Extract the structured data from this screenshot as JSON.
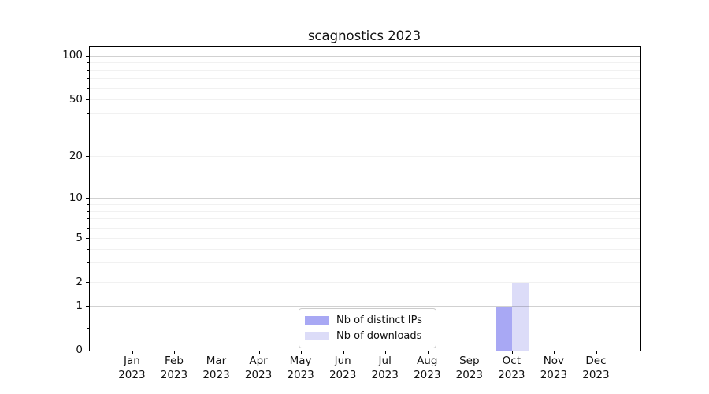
{
  "chart_data": {
    "type": "bar",
    "title": "scagnostics 2023",
    "categories": [
      "Jan 2023",
      "Feb 2023",
      "Mar 2023",
      "Apr 2023",
      "May 2023",
      "Jun 2023",
      "Jul 2023",
      "Aug 2023",
      "Sep 2023",
      "Oct 2023",
      "Nov 2023",
      "Dec 2023"
    ],
    "series": [
      {
        "name": "Nb of distinct IPs",
        "color": "#a8a8f4",
        "values": [
          0,
          0,
          0,
          0,
          0,
          0,
          0,
          0,
          0,
          1,
          0,
          0
        ]
      },
      {
        "name": "Nb of downloads",
        "color": "#dcdcf8",
        "values": [
          0,
          0,
          0,
          0,
          0,
          0,
          0,
          0,
          0,
          2,
          0,
          0
        ]
      }
    ],
    "yticks": [
      0,
      1,
      2,
      5,
      10,
      20,
      50,
      100
    ],
    "yscale": "symlog",
    "ylim": [
      0,
      115
    ],
    "grid": "horizontal-major-and-minor",
    "legend_position": "lower-center-inside",
    "xlabel": "",
    "ylabel": ""
  }
}
